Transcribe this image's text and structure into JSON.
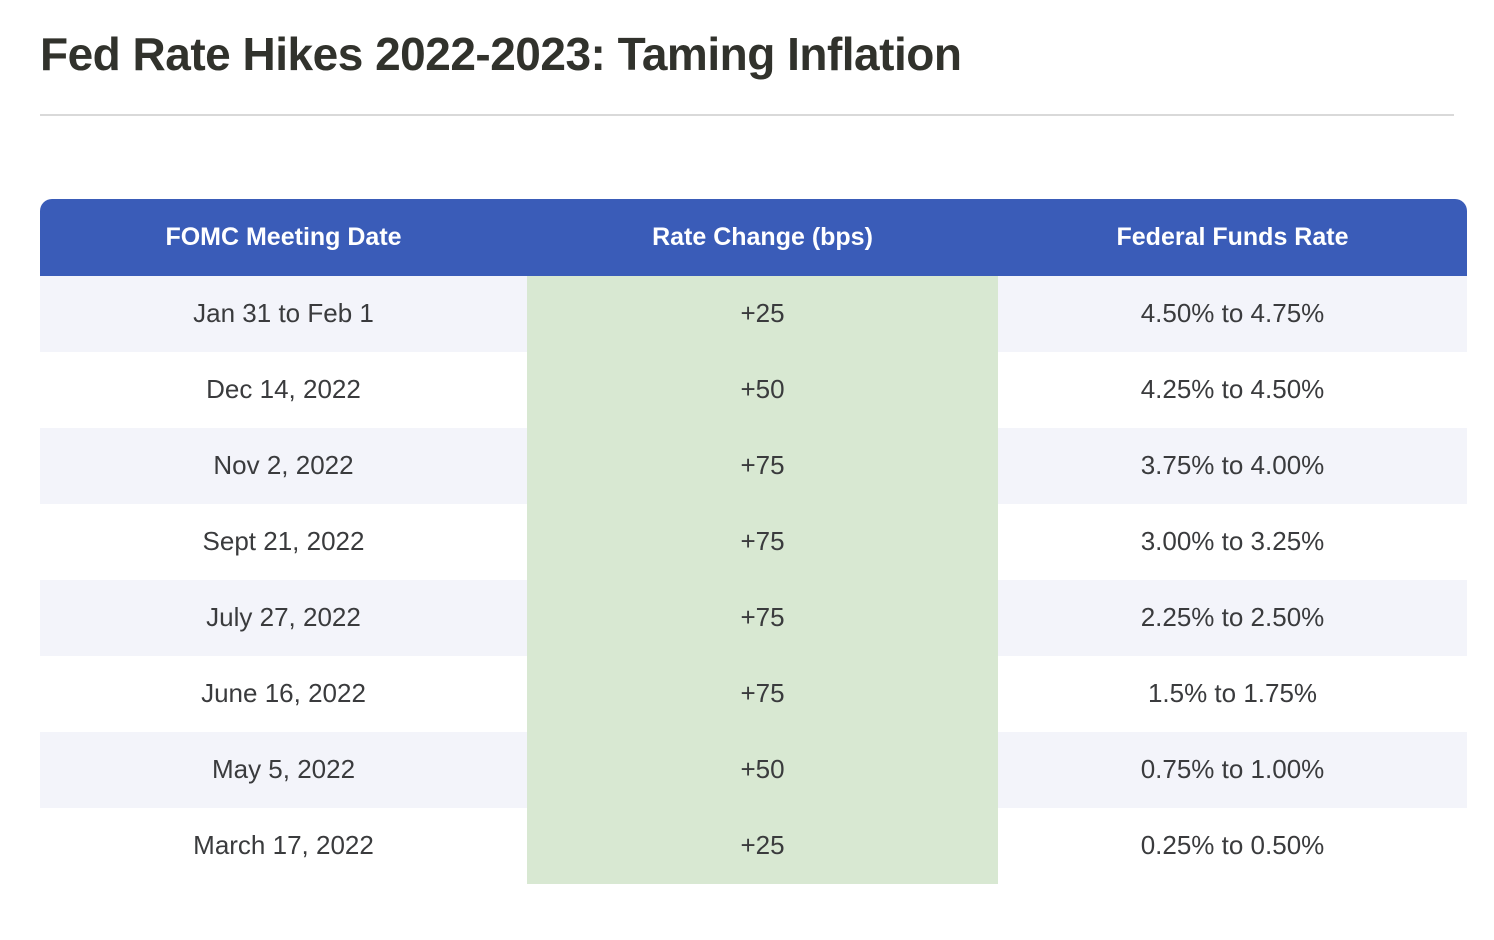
{
  "chart_data": {
    "type": "table",
    "title": "Fed Rate Hikes 2022-2023: Taming Inflation",
    "columns": [
      "FOMC Meeting Date",
      "Rate Change (bps)",
      "Federal Funds Rate"
    ],
    "rows": [
      [
        "Jan 31 to Feb 1",
        "+25",
        "4.50% to 4.75%"
      ],
      [
        "Dec 14, 2022",
        "+50",
        "4.25% to 4.50%"
      ],
      [
        "Nov 2, 2022",
        "+75",
        "3.75% to 4.00%"
      ],
      [
        "Sept 21, 2022",
        "+75",
        "3.00% to 3.25%"
      ],
      [
        "July 27, 2022",
        "+75",
        "2.25% to 2.50%"
      ],
      [
        "June 16, 2022",
        "+75",
        "1.5% to 1.75%"
      ],
      [
        "May 5, 2022",
        "+50",
        "0.75% to 1.00%"
      ],
      [
        "March 17, 2022",
        "+25",
        "0.25% to 0.50%"
      ]
    ],
    "highlighted_column": "Rate Change (bps)",
    "layout": {
      "header_position": "top",
      "striped_rows": true,
      "legend": "none",
      "grid": "off"
    },
    "colors": {
      "header_bg": "#3a5cb8",
      "header_text": "#ffffff",
      "row_stripe_bg": "#f3f4fa",
      "row_plain_bg": "#ffffff",
      "highlight_column_bg": "#d8e8d2",
      "cell_text": "#3a3b3d",
      "title_text": "#31322c",
      "divider": "#d9d9d9"
    }
  }
}
